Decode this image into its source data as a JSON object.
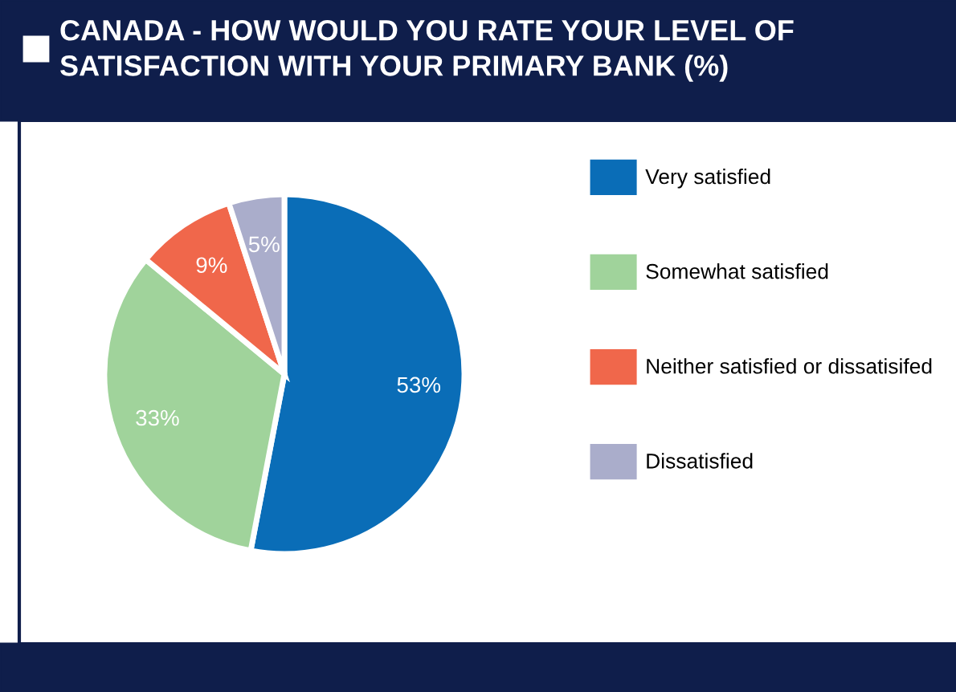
{
  "chart_data": {
    "type": "pie",
    "title": "CANADA - HOW WOULD YOU RATE YOUR LEVEL OF SATISFACTION WITH YOUR PRIMARY BANK (%)",
    "categories": [
      "Very satisfied",
      "Somewhat satisfied",
      "Neither satisfied or dissatisifed",
      "Dissatisfied"
    ],
    "values": [
      53,
      33,
      9,
      5
    ],
    "colors": [
      "#0a6db7",
      "#a0d39b",
      "#f0674b",
      "#aaadcb"
    ],
    "value_labels": [
      "53%",
      "33%",
      "9%",
      "5%"
    ],
    "legend": "right"
  }
}
